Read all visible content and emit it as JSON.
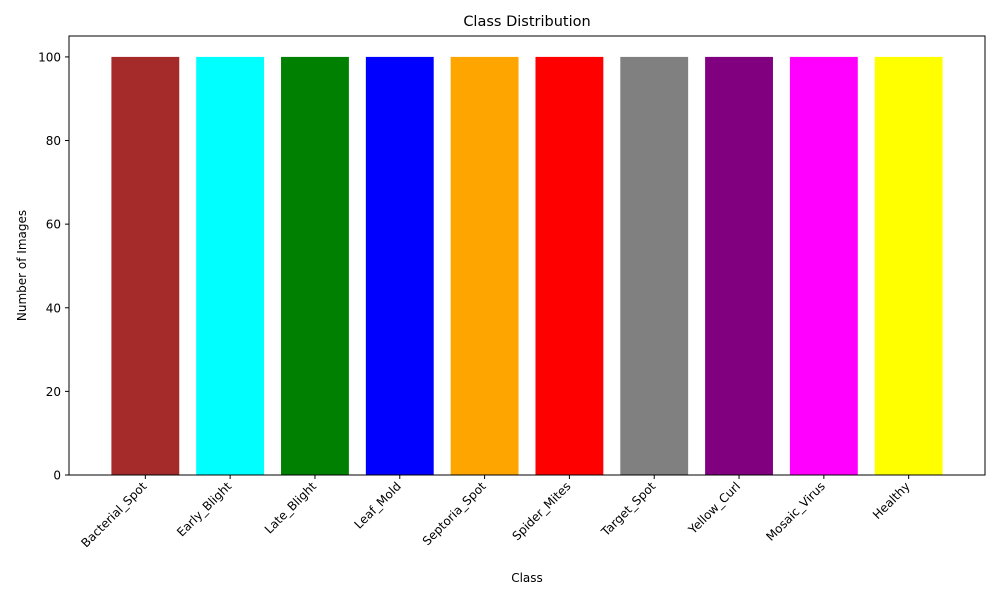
{
  "chart_data": {
    "type": "bar",
    "title": "Class Distribution",
    "xlabel": "Class",
    "ylabel": "Number of Images",
    "categories": [
      "Bacterial_Spot",
      "Early_Blight",
      "Late_Blight",
      "Leaf_Mold",
      "Septoria_Spot",
      "Spider_Mites",
      "Target_Spot",
      "Yellow_Curl",
      "Mosaic_Virus",
      "Healthy"
    ],
    "values": [
      100,
      100,
      100,
      100,
      100,
      100,
      100,
      100,
      100,
      100
    ],
    "colors": [
      "#a52a2a",
      "#00ffff",
      "#008000",
      "#0000ff",
      "#ffa500",
      "#ff0000",
      "#808080",
      "#800080",
      "#ff00ff",
      "#ffff00"
    ],
    "ylim": [
      0,
      105
    ],
    "yticks": [
      0,
      20,
      40,
      60,
      80,
      100
    ],
    "grid": false,
    "legend": "none"
  }
}
